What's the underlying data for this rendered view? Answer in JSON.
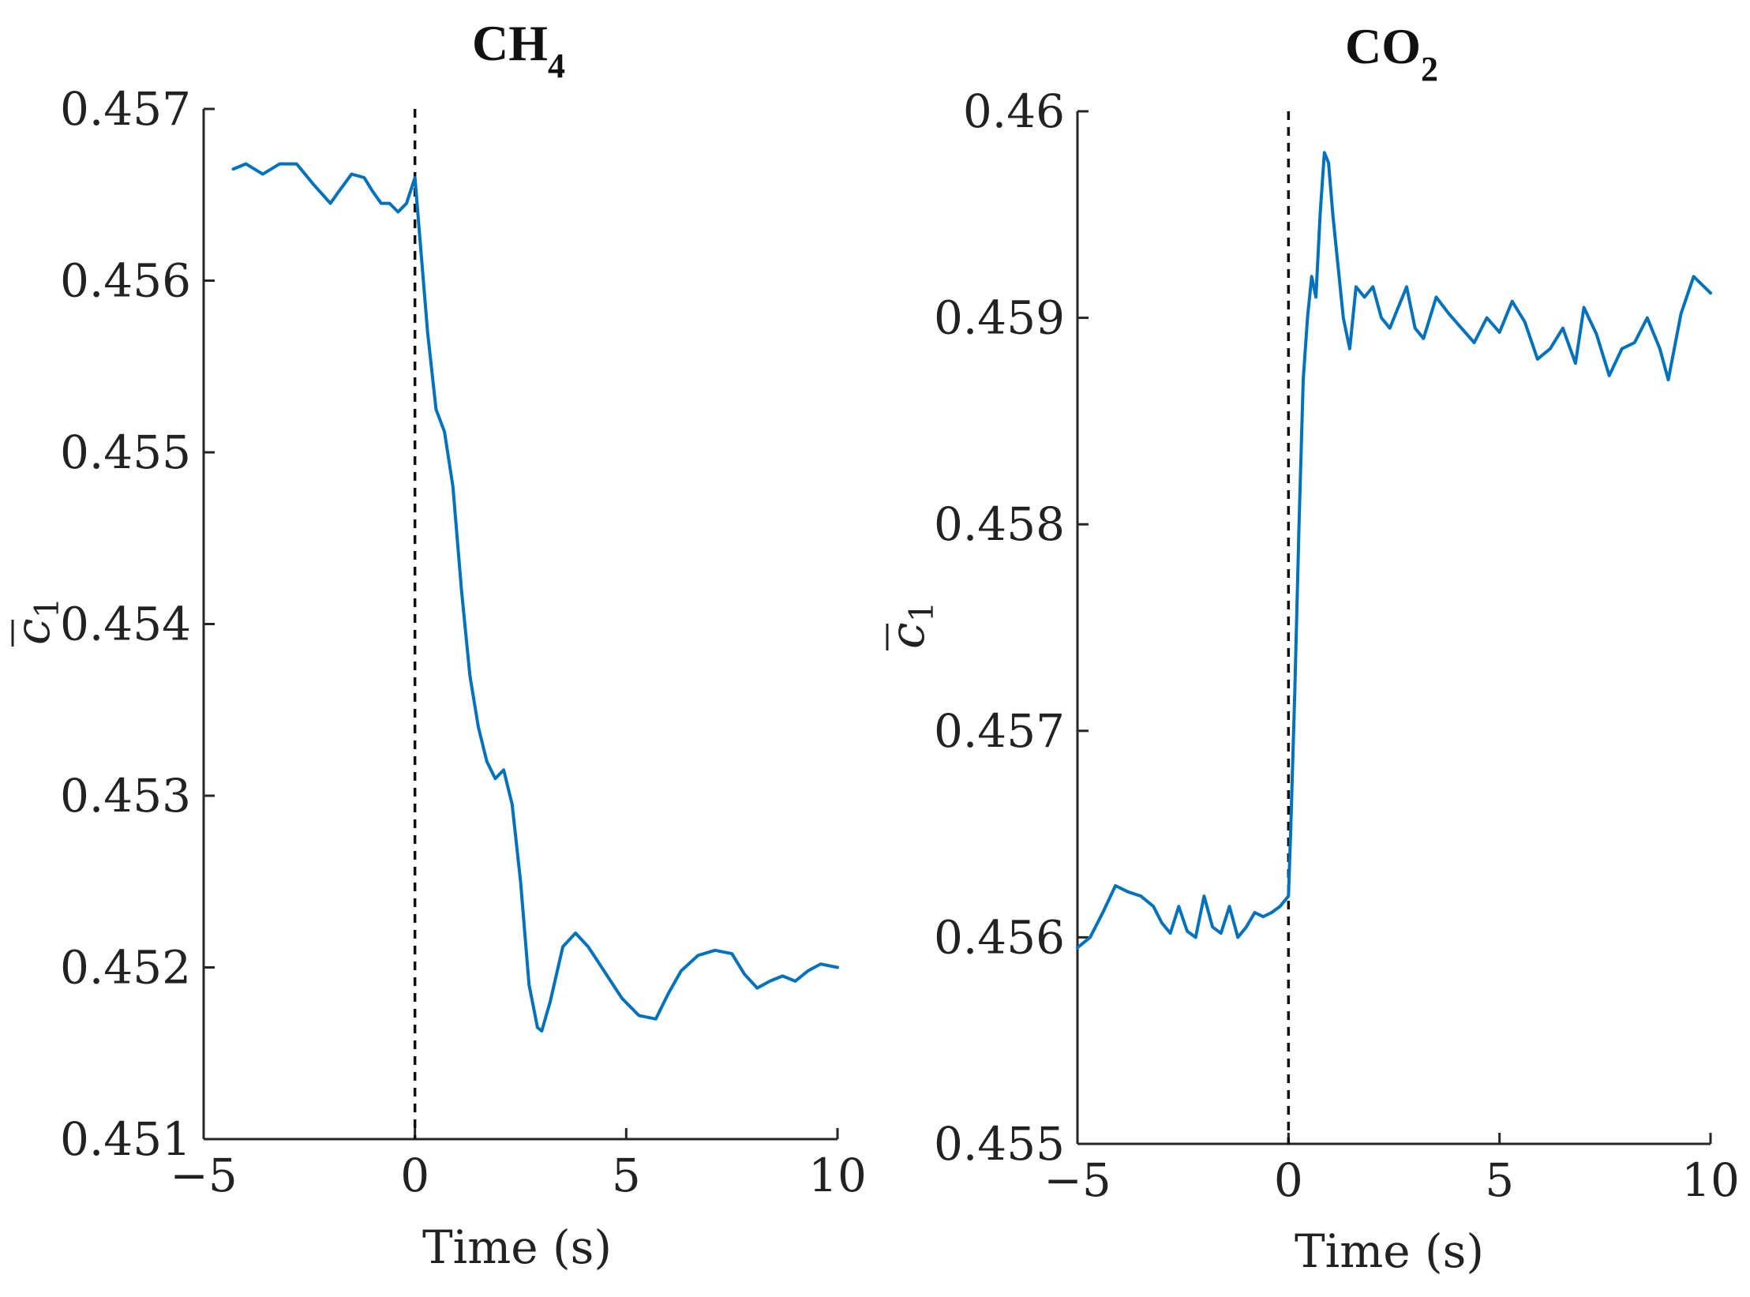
{
  "chart_data": [
    {
      "type": "line",
      "title": "CH",
      "title_subscript": "4",
      "xlabel": "Time (s)",
      "ylabel": "c",
      "ylabel_subscript": "1",
      "xlim": [
        -5,
        10
      ],
      "ylim": [
        0.451,
        0.457
      ],
      "xticks": [
        -5,
        0,
        5,
        10
      ],
      "xtick_labels": [
        "−5",
        "0",
        "5",
        "10"
      ],
      "yticks": [
        0.451,
        0.452,
        0.453,
        0.454,
        0.455,
        0.456,
        0.457
      ],
      "ytick_labels": [
        "0.451",
        "0.452",
        "0.453",
        "0.454",
        "0.455",
        "0.456",
        "0.457"
      ],
      "event_line_x": 0,
      "series": [
        {
          "name": "c1",
          "color": "#0072BD",
          "x": [
            -4.3,
            -4.0,
            -3.6,
            -3.2,
            -2.8,
            -2.4,
            -2.0,
            -1.8,
            -1.5,
            -1.2,
            -1.0,
            -0.8,
            -0.6,
            -0.4,
            -0.2,
            0.0,
            0.1,
            0.3,
            0.5,
            0.7,
            0.9,
            1.1,
            1.3,
            1.5,
            1.7,
            1.9,
            2.1,
            2.3,
            2.5,
            2.7,
            2.9,
            3.0,
            3.2,
            3.5,
            3.8,
            4.1,
            4.5,
            4.9,
            5.3,
            5.7,
            6.0,
            6.3,
            6.7,
            7.1,
            7.5,
            7.8,
            8.1,
            8.4,
            8.7,
            9.0,
            9.3,
            9.6,
            10.0
          ],
          "y": [
            0.45665,
            0.45668,
            0.45662,
            0.45668,
            0.45668,
            0.45656,
            0.45645,
            0.45652,
            0.45662,
            0.4566,
            0.45652,
            0.45645,
            0.45645,
            0.4564,
            0.45645,
            0.4566,
            0.4563,
            0.4557,
            0.45525,
            0.45512,
            0.4548,
            0.4542,
            0.4537,
            0.4534,
            0.4532,
            0.4531,
            0.45315,
            0.45295,
            0.4525,
            0.4519,
            0.45165,
            0.45163,
            0.4518,
            0.45212,
            0.4522,
            0.45212,
            0.45197,
            0.45182,
            0.45172,
            0.4517,
            0.45185,
            0.45198,
            0.45207,
            0.4521,
            0.45208,
            0.45196,
            0.45188,
            0.45192,
            0.45195,
            0.45192,
            0.45198,
            0.45202,
            0.452
          ]
        }
      ]
    },
    {
      "type": "line",
      "title": "CO",
      "title_subscript": "2",
      "xlabel": "Time (s)",
      "ylabel": "c",
      "ylabel_subscript": "1",
      "xlim": [
        -5,
        10
      ],
      "ylim": [
        0.455,
        0.46
      ],
      "xticks": [
        -5,
        0,
        5,
        10
      ],
      "xtick_labels": [
        "−5",
        "0",
        "5",
        "10"
      ],
      "yticks": [
        0.455,
        0.456,
        0.457,
        0.458,
        0.459,
        0.46
      ],
      "ytick_labels": [
        "0.455",
        "0.456",
        "0.457",
        "0.458",
        "0.459",
        "0.46"
      ],
      "event_line_x": 0,
      "series": [
        {
          "name": "c1",
          "color": "#0072BD",
          "x": [
            -5.0,
            -4.7,
            -4.4,
            -4.1,
            -3.8,
            -3.5,
            -3.2,
            -3.0,
            -2.8,
            -2.6,
            -2.4,
            -2.2,
            -2.0,
            -1.8,
            -1.6,
            -1.4,
            -1.2,
            -1.0,
            -0.8,
            -0.6,
            -0.4,
            -0.2,
            0.0,
            0.05,
            0.15,
            0.25,
            0.35,
            0.45,
            0.55,
            0.65,
            0.75,
            0.85,
            0.95,
            1.05,
            1.15,
            1.3,
            1.45,
            1.6,
            1.8,
            2.0,
            2.2,
            2.4,
            2.6,
            2.8,
            3.0,
            3.2,
            3.5,
            3.8,
            4.1,
            4.4,
            4.7,
            5.0,
            5.3,
            5.6,
            5.9,
            6.2,
            6.5,
            6.8,
            7.0,
            7.3,
            7.6,
            7.9,
            8.2,
            8.5,
            8.8,
            9.0,
            9.3,
            9.6,
            10.0
          ],
          "y": [
            0.45595,
            0.456,
            0.45612,
            0.45625,
            0.45622,
            0.4562,
            0.45615,
            0.45607,
            0.45602,
            0.45615,
            0.45603,
            0.456,
            0.4562,
            0.45605,
            0.45602,
            0.45615,
            0.456,
            0.45605,
            0.45612,
            0.4561,
            0.45612,
            0.45615,
            0.4562,
            0.4565,
            0.4572,
            0.458,
            0.4587,
            0.459,
            0.4592,
            0.4591,
            0.4595,
            0.4598,
            0.45975,
            0.4595,
            0.4593,
            0.459,
            0.45885,
            0.45915,
            0.4591,
            0.45915,
            0.459,
            0.45895,
            0.45905,
            0.45915,
            0.45895,
            0.4589,
            0.4591,
            0.45902,
            0.45895,
            0.45888,
            0.459,
            0.45893,
            0.45908,
            0.45898,
            0.4588,
            0.45885,
            0.45895,
            0.45878,
            0.45905,
            0.45892,
            0.45872,
            0.45885,
            0.45888,
            0.459,
            0.45885,
            0.4587,
            0.45902,
            0.4592,
            0.45912
          ]
        }
      ]
    }
  ]
}
